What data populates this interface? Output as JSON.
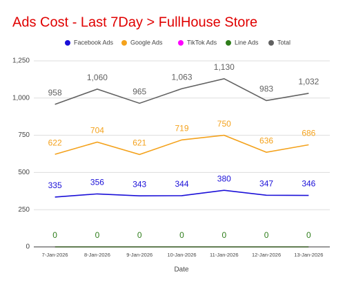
{
  "chart_data": {
    "type": "line",
    "title": "Ads Cost - Last 7Day > FullHouse Store",
    "x_label": "Date",
    "categories": [
      "7-Jan-2026",
      "8-Jan-2026",
      "9-Jan-2026",
      "10-Jan-2026",
      "11-Jan-2026",
      "12-Jan-2026",
      "13-Jan-2026"
    ],
    "ylim": [
      0,
      1250
    ],
    "yticks": [
      0,
      250,
      500,
      750,
      {
        "value": 1000,
        "label": "1,000"
      },
      {
        "value": 1250,
        "label": "1,250"
      }
    ],
    "grid": true,
    "legend": "top",
    "series": [
      {
        "name": "Facebook Ads",
        "color": "#1a0fd8",
        "data_labels": true,
        "values": [
          335,
          356,
          343,
          344,
          380,
          347,
          346
        ]
      },
      {
        "name": "Google Ads",
        "color": "#f4a21c",
        "data_labels": true,
        "values": [
          622,
          704,
          621,
          719,
          750,
          636,
          686
        ]
      },
      {
        "name": "TikTok Ads",
        "color": "#ff00ff",
        "data_labels": false,
        "values": [
          0,
          0,
          0,
          0,
          0,
          0,
          0
        ]
      },
      {
        "name": "Line Ads",
        "color": "#2e7d1a",
        "data_labels": true,
        "values": [
          0,
          0,
          0,
          0,
          0,
          0,
          0
        ]
      },
      {
        "name": "Total",
        "color": "#616161",
        "data_labels": true,
        "values": [
          958,
          1060,
          965,
          1063,
          1130,
          983,
          1032
        ],
        "value_labels": [
          "958",
          "1,060",
          "965",
          "1,063",
          "1,130",
          "983",
          "1,032"
        ]
      }
    ]
  }
}
